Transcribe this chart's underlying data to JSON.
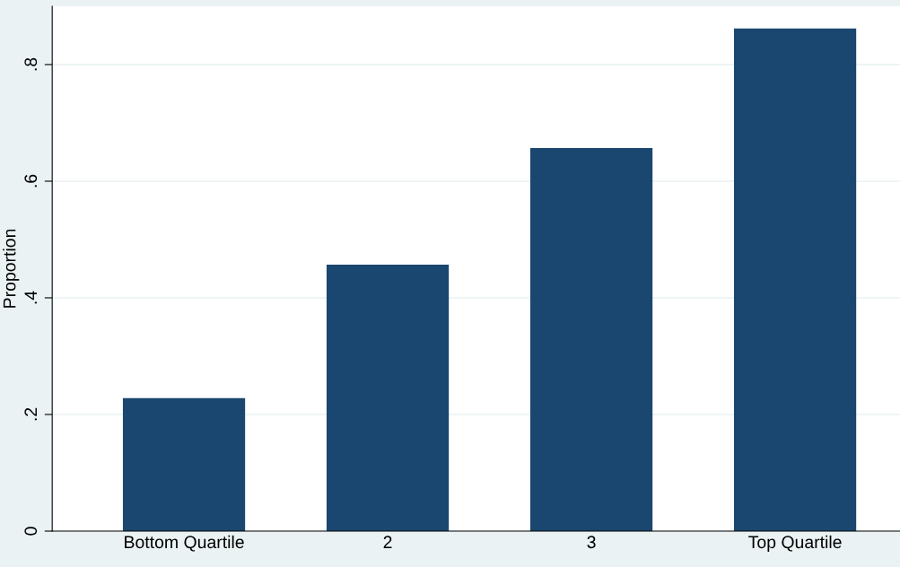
{
  "chart_data": {
    "type": "bar",
    "ylabel": "Proportion",
    "categories": [
      "Bottom Quartile",
      "2",
      "3",
      "Top Quartile"
    ],
    "values": [
      0.228,
      0.457,
      0.657,
      0.862
    ],
    "color": "#1a476f",
    "ylim": [
      0,
      0.9
    ],
    "yticks": [
      0,
      {
        "value": 0.2,
        "label": ".2"
      },
      {
        "value": 0.4,
        "label": ".4"
      },
      {
        "value": 0.6,
        "label": ".6"
      },
      {
        "value": 0.8,
        "label": ".8"
      }
    ],
    "grid": "y"
  }
}
